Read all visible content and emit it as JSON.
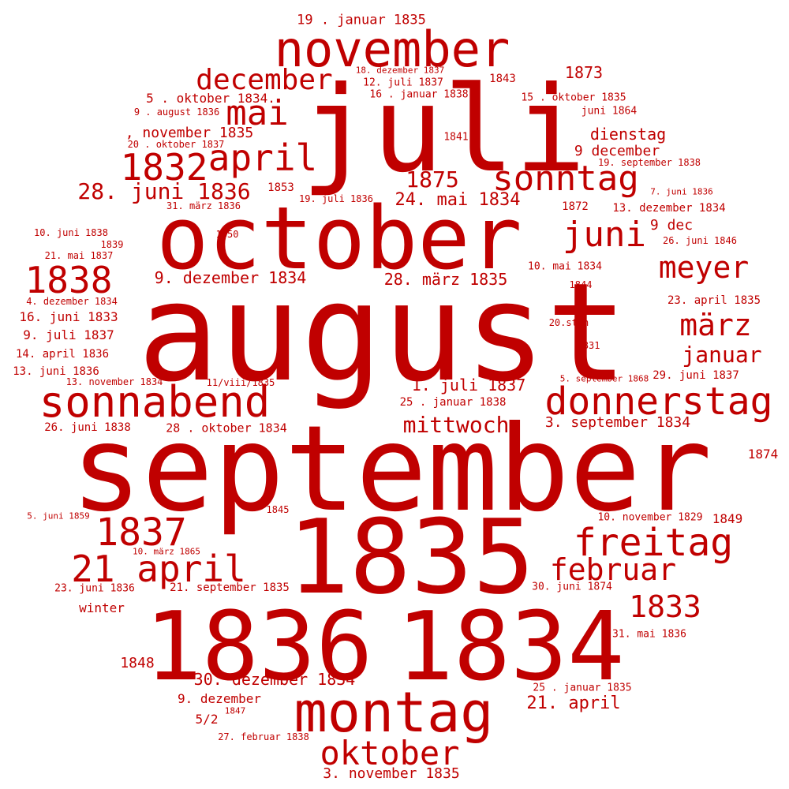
{
  "color": "#c00000",
  "words": [
    "august",
    "september",
    "october",
    "juli",
    "1835",
    "1836",
    "1834",
    "november",
    "montag",
    "sonnabend",
    "donnerstag",
    "freitag",
    "oktober",
    "1837",
    "1838",
    "1832",
    "april",
    "21 april",
    "sonntag",
    "juni",
    "mai",
    "december",
    "meyer",
    "märz",
    "februar",
    "1833",
    "28. juni 1836",
    "1875",
    "24. mai 1834",
    "januar",
    "mittwoch",
    "9. dezember 1834",
    "28. märz 1835",
    "30. dezember 1834",
    "3. november 1835",
    "21. april",
    "1. juli 1837",
    "3. september 1834",
    "dienstag",
    "9 december",
    "9 dec",
    "1873",
    "19 . januar 1835",
    "5 . oktober 1834.",
    ", november 1835",
    "1874",
    "1849",
    "1848",
    "9. dezember",
    "winter",
    "5/2",
    "13. dezember 1834",
    "23. april 1835",
    "29. juni 1837",
    "16. juni 1833",
    "9. juli 1837",
    "14. april 1836",
    "13. juni 1836",
    "26. juni 1838",
    "28 . oktober 1834",
    "25 . januar 1838",
    "21. september 1835",
    "23. juni 1836",
    "1843",
    "1872",
    "1853",
    "10. november 1829",
    "30. juni 1874",
    "31. mai 1836",
    "25 . januar 1835",
    "27. februar 1838",
    "18. dezember 1837",
    "12. juli 1837",
    "16 . januar 1838",
    "15 . oktober 1835",
    "juni 1864",
    "9 . august 1836",
    "20 . oktober 1837",
    "1841",
    "19. september 1838",
    "7. juni 1836",
    "31. märz 1836",
    "19. juli 1836",
    "10. juni 1838",
    "1850",
    "1839",
    "21. mai 1837",
    "26. juni 1846",
    "10. mai 1834",
    "1844",
    "4. dezember 1834",
    "20.sten",
    "1831",
    "13. november 1834",
    "11/viii/1835",
    "5. september 1868",
    "1845",
    "5. juni 1859",
    "10. märz 1865",
    "1847"
  ]
}
